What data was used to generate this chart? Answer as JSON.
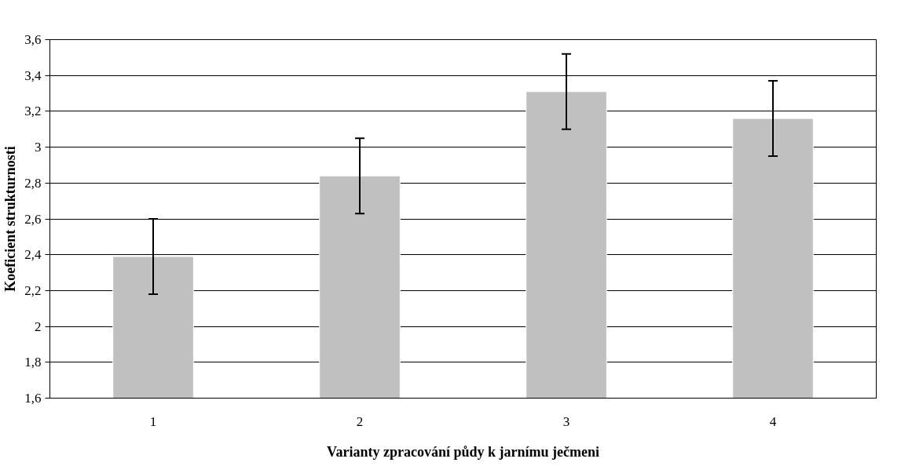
{
  "chart_data": {
    "type": "bar",
    "xlabel": "Varianty zpracování půdy k jarnímu ječmeni",
    "ylabel": "Koeficient strukturnosti",
    "categories": [
      "1",
      "2",
      "3",
      "4"
    ],
    "values": [
      2.39,
      2.84,
      3.31,
      3.16
    ],
    "errors": [
      0.21,
      0.21,
      0.21,
      0.21
    ],
    "color": "#c0c0c0",
    "ylim": [
      1.6,
      3.6
    ],
    "yticks": [
      {
        "value": 1.6,
        "label": "1,6"
      },
      {
        "value": 1.8,
        "label": "1,8"
      },
      {
        "value": 2,
        "label": "2"
      },
      {
        "value": 2.2,
        "label": "2,2"
      },
      {
        "value": 2.4,
        "label": "2,4"
      },
      {
        "value": 2.6,
        "label": "2,6"
      },
      {
        "value": 2.8,
        "label": "2,8"
      },
      {
        "value": 3,
        "label": "3"
      },
      {
        "value": 3.2,
        "label": "3,2"
      },
      {
        "value": 3.4,
        "label": "3,4"
      },
      {
        "value": 3.6,
        "label": "3,6"
      }
    ],
    "grid": "y"
  }
}
